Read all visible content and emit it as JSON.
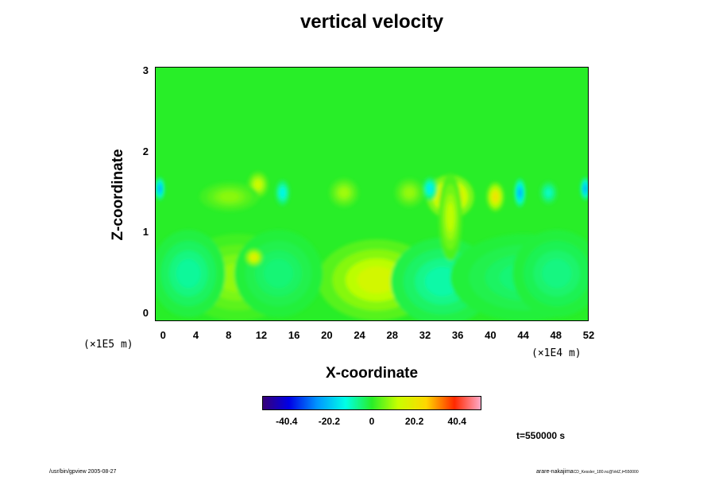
{
  "chart_data": {
    "type": "heatmap",
    "title": "vertical velocity",
    "xlabel": "X-coordinate",
    "ylabel": "Z-coordinate",
    "x_factor_label": "(×1E4 m)",
    "z_factor_label": "(×1E5 m)",
    "xlim": [
      -1,
      52
    ],
    "ylim": [
      -0.1,
      3.05
    ],
    "x_ticks": [
      "0",
      "4",
      "8",
      "12",
      "16",
      "20",
      "24",
      "28",
      "32",
      "36",
      "40",
      "44",
      "48",
      "52"
    ],
    "y_ticks": [
      "0",
      "1",
      "2",
      "3"
    ],
    "colorbar": {
      "ticks": [
        "-40.4",
        "-20.2",
        "0",
        "20.2",
        "40.4"
      ],
      "range": [
        -52,
        52
      ]
    },
    "features": [
      {
        "x": 26,
        "z": 0.38,
        "sx": 2.2,
        "sz": 0.16,
        "value": 48
      },
      {
        "x": 26,
        "z": 0.42,
        "sx": 4.0,
        "sz": 0.28,
        "value": 18
      },
      {
        "x": 9,
        "z": 0.45,
        "sx": 4.0,
        "sz": 0.3,
        "value": 10
      },
      {
        "x": 16,
        "z": 0.45,
        "sx": 1.6,
        "sz": 0.18,
        "value": -13
      },
      {
        "x": 14,
        "z": 0.5,
        "sx": 3.0,
        "sz": 0.3,
        "value": -6
      },
      {
        "x": 35.5,
        "z": 0.42,
        "sx": 1.8,
        "sz": 0.14,
        "value": -44
      },
      {
        "x": 34,
        "z": 0.4,
        "sx": 3.5,
        "sz": 0.3,
        "value": -10
      },
      {
        "x": 38.5,
        "z": 0.35,
        "sx": 0.5,
        "sz": 0.1,
        "value": 40
      },
      {
        "x": 42.5,
        "z": 0.33,
        "sx": 0.4,
        "sz": 0.12,
        "value": -45
      },
      {
        "x": 44,
        "z": 0.45,
        "sx": 5.0,
        "sz": 0.3,
        "value": -6
      },
      {
        "x": 3,
        "z": 0.5,
        "sx": 2.5,
        "sz": 0.3,
        "value": -9
      },
      {
        "x": 48,
        "z": 0.5,
        "sx": 3.0,
        "sz": 0.3,
        "value": -7
      },
      {
        "x": 11,
        "z": 0.7,
        "sx": 0.6,
        "sz": 0.06,
        "value": 22
      },
      {
        "x": 35,
        "z": 1.45,
        "sx": 1.6,
        "sz": 0.15,
        "value": 33
      },
      {
        "x": 35,
        "z": 1.2,
        "sx": 0.8,
        "sz": 0.3,
        "value": 14
      },
      {
        "x": 32.5,
        "z": 1.55,
        "sx": 0.5,
        "sz": 0.08,
        "value": -18
      },
      {
        "x": 40.5,
        "z": 1.45,
        "sx": 0.6,
        "sz": 0.1,
        "value": 26
      },
      {
        "x": 43.5,
        "z": 1.5,
        "sx": 0.4,
        "sz": 0.1,
        "value": -26
      },
      {
        "x": -0.5,
        "z": 1.55,
        "sx": 0.35,
        "sz": 0.08,
        "value": -26
      },
      {
        "x": 51.5,
        "z": 1.55,
        "sx": 0.35,
        "sz": 0.08,
        "value": -26
      },
      {
        "x": 14.5,
        "z": 1.5,
        "sx": 0.5,
        "sz": 0.09,
        "value": -16
      },
      {
        "x": 11.5,
        "z": 1.6,
        "sx": 0.7,
        "sz": 0.09,
        "value": 16
      },
      {
        "x": 22,
        "z": 1.5,
        "sx": 1.0,
        "sz": 0.1,
        "value": 11
      },
      {
        "x": 8,
        "z": 1.45,
        "sx": 2.0,
        "sz": 0.1,
        "value": 9
      },
      {
        "x": 47,
        "z": 1.5,
        "sx": 0.6,
        "sz": 0.08,
        "value": -12
      },
      {
        "x": 30,
        "z": 1.5,
        "sx": 1.0,
        "sz": 0.1,
        "value": 10
      }
    ]
  },
  "time_label": "t=550000 s",
  "footer_left": "/usr/bin/gpview 2005-08-27",
  "footer_right": "arare-nakajima",
  "footer_right_small": "CD_Kessler_180.nc@VelZ,t=550000"
}
